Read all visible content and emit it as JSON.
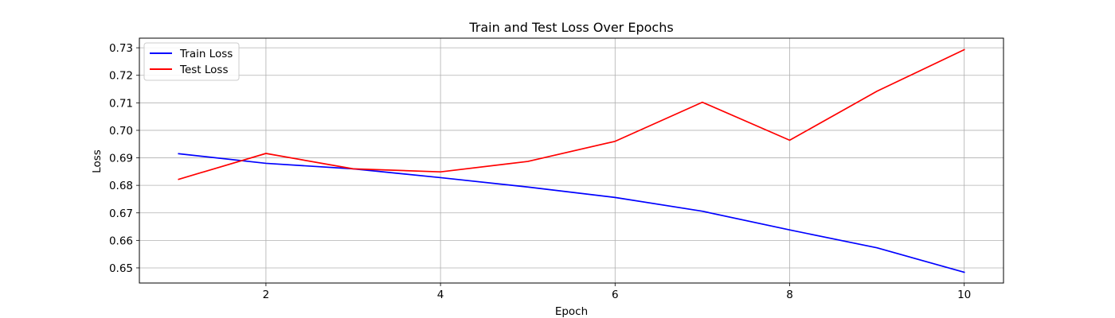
{
  "chart_data": {
    "type": "line",
    "title": "Train and Test Loss Over Epochs",
    "xlabel": "Epoch",
    "ylabel": "Loss",
    "xlim": [
      0.55,
      10.45
    ],
    "ylim": [
      0.6445,
      0.7335
    ],
    "xticks": [
      2,
      4,
      6,
      8,
      10
    ],
    "yticks": [
      0.65,
      0.66,
      0.67,
      0.68,
      0.69,
      0.7,
      0.71,
      0.72,
      0.73
    ],
    "ytick_labels": [
      "0.65",
      "0.66",
      "0.67",
      "0.68",
      "0.69",
      "0.70",
      "0.71",
      "0.72",
      "0.73"
    ],
    "grid": true,
    "legend_position": "top-left",
    "x": [
      1,
      2,
      3,
      4,
      5,
      6,
      7,
      8,
      9,
      10
    ],
    "series": [
      {
        "name": "Train Loss",
        "color": "#0000ff",
        "values": [
          0.6915,
          0.688,
          0.686,
          0.6828,
          0.6794,
          0.6756,
          0.6706,
          0.6638,
          0.6573,
          0.6484
        ]
      },
      {
        "name": "Test Loss",
        "color": "#ff0000",
        "values": [
          0.6822,
          0.6916,
          0.686,
          0.6849,
          0.6887,
          0.696,
          0.7102,
          0.6964,
          0.7142,
          0.7293
        ]
      }
    ]
  }
}
